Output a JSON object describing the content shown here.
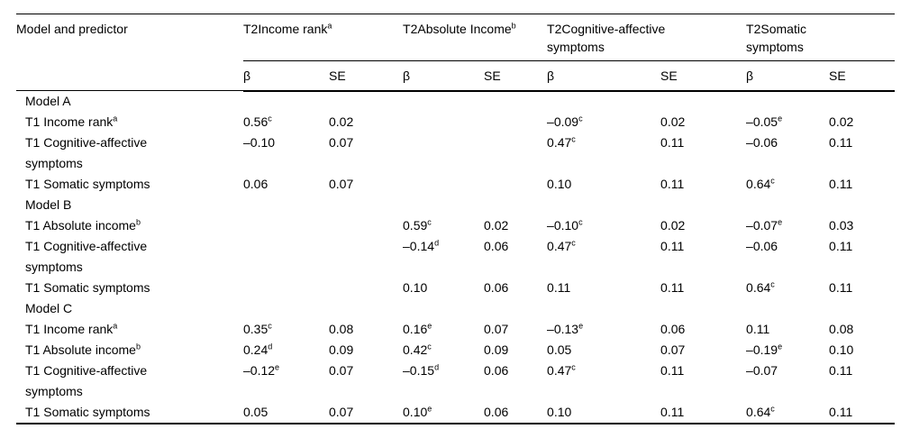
{
  "table": {
    "corner_label": "Model and predictor",
    "groups": [
      {
        "label": "T2Income rank",
        "sup": "a"
      },
      {
        "label": "T2Absolute Income",
        "sup": "b"
      },
      {
        "label": "T2Cognitive-affective\nsymptoms",
        "sup": ""
      },
      {
        "label": "T2Somatic\nsymptoms",
        "sup": ""
      }
    ],
    "sub_headers": [
      "β",
      "SE",
      "β",
      "SE",
      "β",
      "SE",
      "β",
      "SE"
    ],
    "rows": [
      {
        "type": "section",
        "label": "Model A",
        "sup": "",
        "cells": [
          null,
          null,
          null,
          null,
          null,
          null,
          null,
          null
        ]
      },
      {
        "type": "data",
        "label": "T1 Income rank",
        "sup": "a",
        "cells": [
          {
            "v": "0.56",
            "s": "c"
          },
          {
            "v": "0.02",
            "s": ""
          },
          null,
          null,
          {
            "v": "–0.09",
            "s": "c"
          },
          {
            "v": "0.02",
            "s": ""
          },
          {
            "v": "–0.05",
            "s": "e"
          },
          {
            "v": "0.02",
            "s": ""
          }
        ]
      },
      {
        "type": "data",
        "label": "T1 Cognitive-affective\nsymptoms",
        "sup": "",
        "cells": [
          {
            "v": "–0.10",
            "s": ""
          },
          {
            "v": "0.07",
            "s": ""
          },
          null,
          null,
          {
            "v": "0.47",
            "s": "c"
          },
          {
            "v": "0.11",
            "s": ""
          },
          {
            "v": "–0.06",
            "s": ""
          },
          {
            "v": "0.11",
            "s": ""
          }
        ]
      },
      {
        "type": "data",
        "label": "T1 Somatic symptoms",
        "sup": "",
        "cells": [
          {
            "v": "0.06",
            "s": ""
          },
          {
            "v": "0.07",
            "s": ""
          },
          null,
          null,
          {
            "v": "0.10",
            "s": ""
          },
          {
            "v": "0.11",
            "s": ""
          },
          {
            "v": "0.64",
            "s": "c"
          },
          {
            "v": "0.11",
            "s": ""
          }
        ]
      },
      {
        "type": "section",
        "label": "Model B",
        "sup": "",
        "cells": [
          null,
          null,
          null,
          null,
          null,
          null,
          null,
          null
        ]
      },
      {
        "type": "data",
        "label": "T1 Absolute income",
        "sup": "b",
        "cells": [
          null,
          null,
          {
            "v": "0.59",
            "s": "c"
          },
          {
            "v": "0.02",
            "s": ""
          },
          {
            "v": "–0.10",
            "s": "c"
          },
          {
            "v": "0.02",
            "s": ""
          },
          {
            "v": "–0.07",
            "s": "e"
          },
          {
            "v": "0.03",
            "s": ""
          }
        ]
      },
      {
        "type": "data",
        "label": "T1 Cognitive-affective\nsymptoms",
        "sup": "",
        "cells": [
          null,
          null,
          {
            "v": "–0.14",
            "s": "d"
          },
          {
            "v": "0.06",
            "s": ""
          },
          {
            "v": "0.47",
            "s": "c"
          },
          {
            "v": "0.11",
            "s": ""
          },
          {
            "v": "–0.06",
            "s": ""
          },
          {
            "v": "0.11",
            "s": ""
          }
        ]
      },
      {
        "type": "data",
        "label": "T1 Somatic symptoms",
        "sup": "",
        "cells": [
          null,
          null,
          {
            "v": "0.10",
            "s": ""
          },
          {
            "v": "0.06",
            "s": ""
          },
          {
            "v": "0.11",
            "s": ""
          },
          {
            "v": "0.11",
            "s": ""
          },
          {
            "v": "0.64",
            "s": "c"
          },
          {
            "v": "0.11",
            "s": ""
          }
        ]
      },
      {
        "type": "section",
        "label": "Model C",
        "sup": "",
        "cells": [
          null,
          null,
          null,
          null,
          null,
          null,
          null,
          null
        ]
      },
      {
        "type": "data",
        "label": "T1 Income rank",
        "sup": "a",
        "cells": [
          {
            "v": "0.35",
            "s": "c"
          },
          {
            "v": "0.08",
            "s": ""
          },
          {
            "v": "0.16",
            "s": "e"
          },
          {
            "v": "0.07",
            "s": ""
          },
          {
            "v": "–0.13",
            "s": "e"
          },
          {
            "v": "0.06",
            "s": ""
          },
          {
            "v": "0.11",
            "s": ""
          },
          {
            "v": "0.08",
            "s": ""
          }
        ]
      },
      {
        "type": "data",
        "label": "T1 Absolute income",
        "sup": "b",
        "cells": [
          {
            "v": "0.24",
            "s": "d"
          },
          {
            "v": "0.09",
            "s": ""
          },
          {
            "v": "0.42",
            "s": "c"
          },
          {
            "v": "0.09",
            "s": ""
          },
          {
            "v": "0.05",
            "s": ""
          },
          {
            "v": "0.07",
            "s": ""
          },
          {
            "v": "–0.19",
            "s": "e"
          },
          {
            "v": "0.10",
            "s": ""
          }
        ]
      },
      {
        "type": "data",
        "label": "T1 Cognitive-affective\nsymptoms",
        "sup": "",
        "cells": [
          {
            "v": "–0.12",
            "s": "e"
          },
          {
            "v": "0.07",
            "s": ""
          },
          {
            "v": "–0.15",
            "s": "d"
          },
          {
            "v": "0.06",
            "s": ""
          },
          {
            "v": "0.47",
            "s": "c"
          },
          {
            "v": "0.11",
            "s": ""
          },
          {
            "v": "–0.07",
            "s": ""
          },
          {
            "v": "0.11",
            "s": ""
          }
        ]
      },
      {
        "type": "data",
        "label": "T1 Somatic symptoms",
        "sup": "",
        "cells": [
          {
            "v": "0.05",
            "s": ""
          },
          {
            "v": "0.07",
            "s": ""
          },
          {
            "v": "0.10",
            "s": "e"
          },
          {
            "v": "0.06",
            "s": ""
          },
          {
            "v": "0.10",
            "s": ""
          },
          {
            "v": "0.11",
            "s": ""
          },
          {
            "v": "0.64",
            "s": "c"
          },
          {
            "v": "0.11",
            "s": ""
          }
        ]
      }
    ],
    "colors": {
      "text": "#000000",
      "background": "#ffffff",
      "rule": "#000000"
    }
  }
}
